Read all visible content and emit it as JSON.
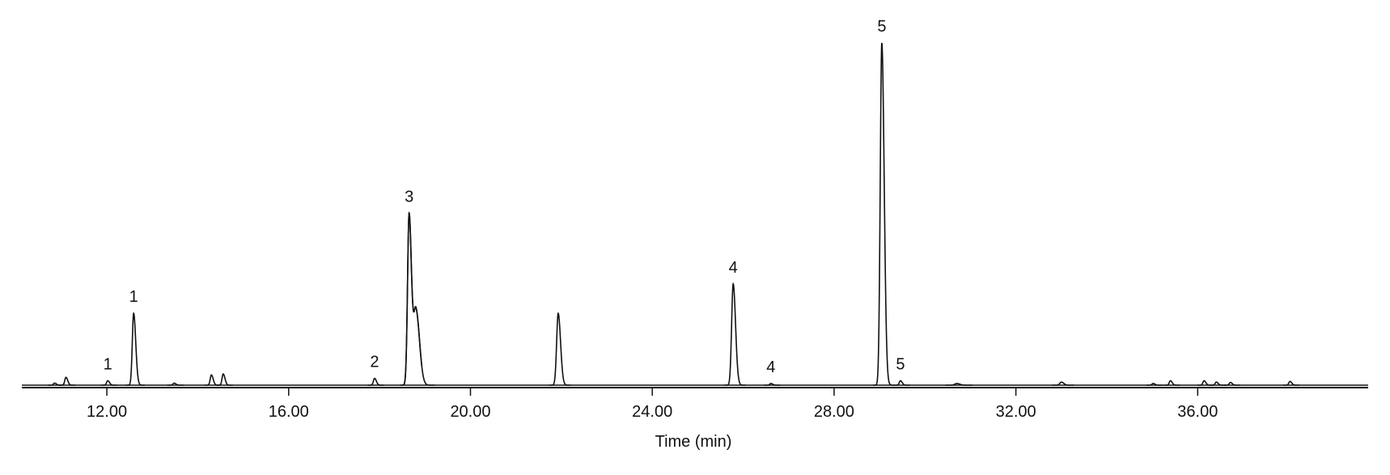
{
  "chart_data": {
    "type": "chromatogram",
    "x_label": "Time (min)",
    "xlim": [
      10.13,
      39.75
    ],
    "xticks": [
      {
        "value": 12,
        "label": "12.00"
      },
      {
        "value": 16,
        "label": "16.00"
      },
      {
        "value": 20,
        "label": "20.00"
      },
      {
        "value": 24,
        "label": "24.00"
      },
      {
        "value": 28,
        "label": "28.00"
      },
      {
        "value": 32,
        "label": "32.00"
      },
      {
        "value": 36,
        "label": "36.00"
      }
    ],
    "color": "#111111",
    "peaks": [
      {
        "time": 10.85,
        "height": 0.6,
        "width": 0.03
      },
      {
        "time": 11.1,
        "height": 2.3,
        "width": 0.03
      },
      {
        "time": 12.02,
        "height": 1.3,
        "width": 0.03,
        "label": "1"
      },
      {
        "time": 12.59,
        "height": 21,
        "width": 0.035,
        "label": "1"
      },
      {
        "time": 13.48,
        "height": 0.6,
        "width": 0.03
      },
      {
        "time": 14.3,
        "height": 3,
        "width": 0.03
      },
      {
        "time": 14.56,
        "height": 3.3,
        "width": 0.03
      },
      {
        "time": 17.89,
        "height": 2,
        "width": 0.03,
        "label": "2"
      },
      {
        "time": 18.65,
        "height": 50,
        "width": 0.04,
        "label": "3"
      },
      {
        "time": 18.8,
        "height": 22,
        "width": 0.06
      },
      {
        "time": 21.93,
        "height": 21,
        "width": 0.04
      },
      {
        "time": 25.78,
        "height": 29.6,
        "width": 0.04,
        "label": "4"
      },
      {
        "time": 26.61,
        "height": 0.5,
        "width": 0.03,
        "label": "4"
      },
      {
        "time": 29.05,
        "height": 100,
        "width": 0.04,
        "label": "5"
      },
      {
        "time": 29.46,
        "height": 1.3,
        "width": 0.03,
        "label": "5"
      },
      {
        "time": 30.7,
        "height": 0.5,
        "width": 0.05
      },
      {
        "time": 33.0,
        "height": 0.9,
        "width": 0.04
      },
      {
        "time": 35.02,
        "height": 0.5,
        "width": 0.03
      },
      {
        "time": 35.4,
        "height": 1.3,
        "width": 0.03
      },
      {
        "time": 36.14,
        "height": 1.3,
        "width": 0.03
      },
      {
        "time": 36.41,
        "height": 0.9,
        "width": 0.03
      },
      {
        "time": 36.72,
        "height": 0.8,
        "width": 0.03
      },
      {
        "time": 38.03,
        "height": 1.1,
        "width": 0.03
      }
    ]
  }
}
